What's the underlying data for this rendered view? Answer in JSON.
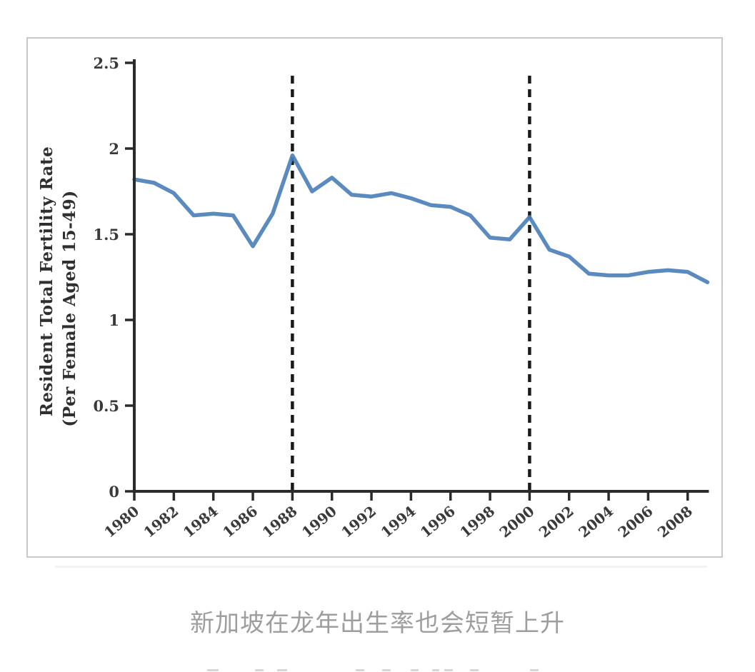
{
  "caption": {
    "text": "新加坡在龙年出生率也会短暂上升",
    "color": "#9e9e9e"
  },
  "chart_data": {
    "type": "line",
    "title": "",
    "xlabel": "",
    "ylabel_line1": "Resident Total Fertility Rate",
    "ylabel_line2": "(Per Female Aged 15-49)",
    "x": [
      1980,
      1981,
      1982,
      1983,
      1984,
      1985,
      1986,
      1987,
      1988,
      1989,
      1990,
      1991,
      1992,
      1993,
      1994,
      1995,
      1996,
      1997,
      1998,
      1999,
      2000,
      2001,
      2002,
      2003,
      2004,
      2005,
      2006,
      2007,
      2008,
      2009
    ],
    "series": [
      {
        "name": "Resident Total Fertility Rate",
        "values": [
          1.82,
          1.8,
          1.74,
          1.61,
          1.62,
          1.61,
          1.43,
          1.62,
          1.96,
          1.75,
          1.83,
          1.73,
          1.72,
          1.74,
          1.71,
          1.67,
          1.66,
          1.61,
          1.48,
          1.47,
          1.6,
          1.41,
          1.37,
          1.27,
          1.26,
          1.26,
          1.28,
          1.29,
          1.28,
          1.22
        ]
      }
    ],
    "x_tick_labels": [
      "1980",
      "1982",
      "1984",
      "1986",
      "1988",
      "1990",
      "1992",
      "1994",
      "1996",
      "1998",
      "2000",
      "2002",
      "2004",
      "2006",
      "2008"
    ],
    "y_tick_labels": [
      "0",
      "0.5",
      "1",
      "1.5",
      "2",
      "2.5"
    ],
    "xlim": [
      1980,
      2009
    ],
    "ylim": [
      0,
      2.5
    ],
    "vlines": [
      1988,
      2000
    ],
    "grid": false,
    "legend": "none",
    "colors": {
      "line": "#4d80b8",
      "axis": "#2b2b2b",
      "tick_label": "#3a3a3a",
      "dashed": "#1a1a1a",
      "card_border": "#c9c9c9"
    }
  }
}
